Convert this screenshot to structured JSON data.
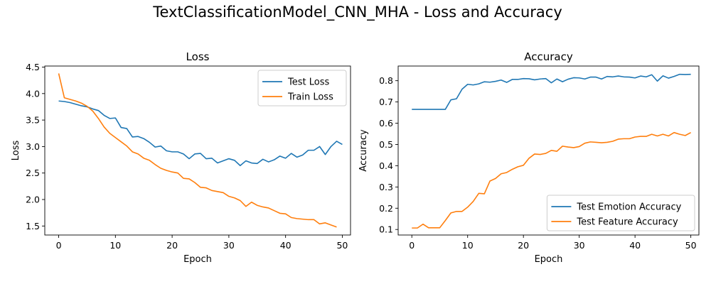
{
  "figure": {
    "suptitle": "TextClassificationModel_CNN_MHA - Loss and Accuracy"
  },
  "chart_data": [
    {
      "type": "line",
      "title": "Loss",
      "xlabel": "Epoch",
      "ylabel": "Loss",
      "xlim": [
        -2.45,
        51.45
      ],
      "ylim": [
        1.33,
        4.52
      ],
      "xticks": [
        0,
        10,
        20,
        30,
        40,
        50
      ],
      "yticks": [
        1.5,
        2.0,
        2.5,
        3.0,
        3.5,
        4.0,
        4.5
      ],
      "ytick_decimals": 1,
      "grid": false,
      "legend_position": "top-right",
      "series": [
        {
          "name": "Test Loss",
          "color": "#1f77b4",
          "values": [
            3.86,
            3.85,
            3.83,
            3.8,
            3.77,
            3.75,
            3.71,
            3.68,
            3.59,
            3.53,
            3.54,
            3.36,
            3.34,
            3.18,
            3.19,
            3.15,
            3.08,
            2.99,
            3.01,
            2.92,
            2.9,
            2.9,
            2.86,
            2.77,
            2.86,
            2.87,
            2.77,
            2.78,
            2.69,
            2.73,
            2.77,
            2.74,
            2.64,
            2.73,
            2.69,
            2.68,
            2.76,
            2.71,
            2.75,
            2.82,
            2.78,
            2.87,
            2.8,
            2.84,
            2.93,
            2.93,
            3.0,
            2.85,
            3.0,
            3.1,
            3.04
          ]
        },
        {
          "name": "Train Loss",
          "color": "#ff7f0e",
          "values": [
            4.38,
            3.92,
            3.89,
            3.86,
            3.82,
            3.76,
            3.67,
            3.53,
            3.37,
            3.25,
            3.17,
            3.09,
            3.01,
            2.9,
            2.86,
            2.78,
            2.74,
            2.66,
            2.59,
            2.55,
            2.52,
            2.5,
            2.4,
            2.39,
            2.32,
            2.23,
            2.22,
            2.17,
            2.15,
            2.13,
            2.06,
            2.03,
            1.98,
            1.87,
            1.95,
            1.89,
            1.86,
            1.84,
            1.79,
            1.74,
            1.73,
            1.66,
            1.64,
            1.63,
            1.62,
            1.62,
            1.54,
            1.56,
            1.52,
            1.48
          ]
        }
      ]
    },
    {
      "type": "line",
      "title": "Accuracy",
      "xlabel": "Epoch",
      "ylabel": "Accuracy",
      "xlim": [
        -2.45,
        51.45
      ],
      "ylim": [
        0.074,
        0.869
      ],
      "xticks": [
        0,
        10,
        20,
        30,
        40,
        50
      ],
      "yticks": [
        0.1,
        0.2,
        0.3,
        0.4,
        0.5,
        0.6,
        0.7,
        0.8
      ],
      "ytick_decimals": 1,
      "grid": false,
      "legend_position": "bottom-right",
      "series": [
        {
          "name": "Test Emotion Accuracy",
          "color": "#1f77b4",
          "values": [
            0.665,
            0.665,
            0.665,
            0.665,
            0.665,
            0.665,
            0.665,
            0.71,
            0.715,
            0.76,
            0.783,
            0.78,
            0.785,
            0.795,
            0.793,
            0.797,
            0.803,
            0.792,
            0.806,
            0.806,
            0.81,
            0.809,
            0.804,
            0.808,
            0.81,
            0.79,
            0.808,
            0.795,
            0.807,
            0.814,
            0.813,
            0.808,
            0.817,
            0.817,
            0.808,
            0.82,
            0.818,
            0.822,
            0.818,
            0.817,
            0.813,
            0.822,
            0.818,
            0.828,
            0.798,
            0.823,
            0.812,
            0.82,
            0.83,
            0.829,
            0.83
          ]
        },
        {
          "name": "Test Feature Accuracy",
          "color": "#ff7f0e",
          "values": [
            0.107,
            0.107,
            0.125,
            0.108,
            0.108,
            0.108,
            0.142,
            0.178,
            0.185,
            0.185,
            0.205,
            0.232,
            0.27,
            0.268,
            0.328,
            0.34,
            0.362,
            0.368,
            0.383,
            0.395,
            0.402,
            0.435,
            0.455,
            0.453,
            0.458,
            0.472,
            0.468,
            0.492,
            0.488,
            0.485,
            0.49,
            0.506,
            0.512,
            0.51,
            0.508,
            0.51,
            0.515,
            0.525,
            0.527,
            0.527,
            0.535,
            0.538,
            0.538,
            0.548,
            0.54,
            0.548,
            0.54,
            0.556,
            0.548,
            0.542,
            0.556
          ]
        }
      ]
    }
  ]
}
